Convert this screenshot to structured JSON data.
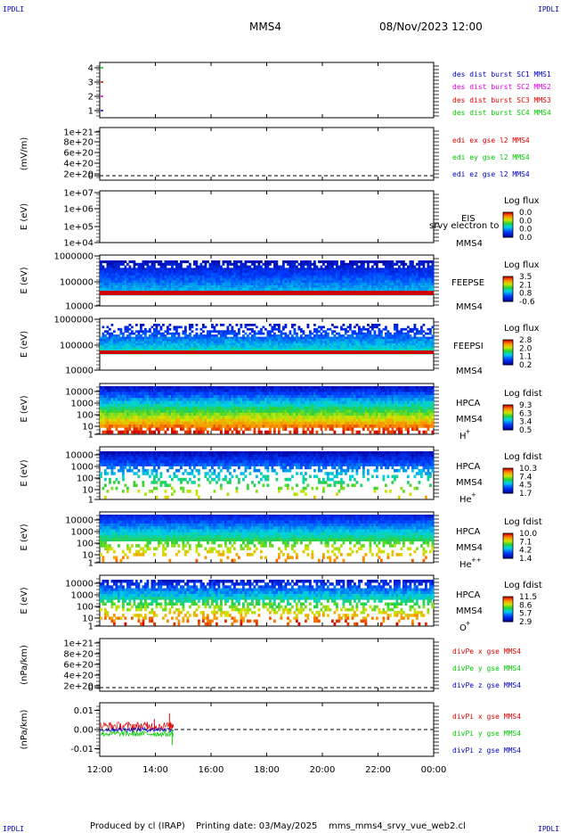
{
  "header": {
    "corner_tl": "IPDLI",
    "corner_tr": "IPDLI",
    "corner_bl": "IPDLI",
    "corner_br": "IPDLI",
    "spacecraft": "MMS4",
    "datetime": "08/Nov/2023 12:00"
  },
  "footer": {
    "produced": "Produced by cl (IRAP)",
    "printing": "Printing date: 03/May/2025",
    "script": "mms_mms4_srvy_vue_web2.cl"
  },
  "colors": {
    "red": "#e00000",
    "green": "#00c800",
    "blue": "#0000c8",
    "magenta": "#e000e0"
  },
  "chart_data": [
    {
      "type": "line",
      "id": "burst",
      "ylim": [
        0.5,
        4.5
      ],
      "ticks": [
        "1",
        "2",
        "3",
        "4"
      ],
      "legend": [
        {
          "name": "des dist burst SC1 MMS1",
          "color": "#0000c8"
        },
        {
          "name": "des dist burst SC2 MMS2",
          "color": "#e000e0"
        },
        {
          "name": "des dist burst SC3 MMS3",
          "color": "#e00000"
        },
        {
          "name": "des dist burst SC4 MMS4",
          "color": "#00c800"
        }
      ]
    },
    {
      "type": "line",
      "id": "edi",
      "ylabel": "(mV/m)",
      "ticks": [
        "1e+21",
        "8e+20",
        "6e+20",
        "4e+20",
        "2e+20",
        "0"
      ],
      "legend": [
        {
          "name": "edi ex gse l2 MMS4",
          "color": "#e00000"
        },
        {
          "name": "edi ey gse l2 MMS4",
          "color": "#00c800"
        },
        {
          "name": "edi ez gse l2 MMS4",
          "color": "#0000c8"
        }
      ]
    },
    {
      "type": "heatmap",
      "id": "eis",
      "ylabel": "E (eV)",
      "ticks": [
        "1e+07",
        "1e+06",
        "1e+05",
        "1e+04"
      ],
      "inst": "EIS",
      "inst_extra": "srvy electron to",
      "sc": "MMS4",
      "cbar_title": "Log flux",
      "cbar_values": [
        "0.0",
        "0.0",
        "0.0",
        "0.0"
      ]
    },
    {
      "type": "heatmap",
      "id": "feepse",
      "ylabel": "E (eV)",
      "ticks": [
        "1000000",
        "100000",
        "10000"
      ],
      "inst": "FEEPSE",
      "sc": "MMS4",
      "cbar_title": "Log flux",
      "cbar_values": [
        "3.5",
        "2.1",
        "0.8",
        "-0.6"
      ]
    },
    {
      "type": "heatmap",
      "id": "feepsi",
      "ylabel": "E (eV)",
      "ticks": [
        "1000000",
        "100000",
        "10000"
      ],
      "inst": "FEEPSI",
      "sc": "MMS4",
      "cbar_title": "Log flux",
      "cbar_values": [
        "2.8",
        "2.0",
        "1.1",
        "0.2"
      ]
    },
    {
      "type": "heatmap",
      "id": "hpca_h",
      "ylabel": "E (eV)",
      "ticks": [
        "10000",
        "1000",
        "100",
        "10",
        "1"
      ],
      "inst": "HPCA",
      "sc": "MMS4",
      "species": "H",
      "species_sup": "+",
      "cbar_title": "Log fdist",
      "cbar_values": [
        "9.3",
        "6.3",
        "3.4",
        "0.5"
      ]
    },
    {
      "type": "heatmap",
      "id": "hpca_he",
      "ylabel": "E (eV)",
      "ticks": [
        "10000",
        "1000",
        "100",
        "10",
        "1"
      ],
      "inst": "HPCA",
      "sc": "MMS4",
      "species": "He",
      "species_sup": "+",
      "cbar_title": "Log fdist",
      "cbar_values": [
        "10.3",
        "7.4",
        "4.5",
        "1.7"
      ]
    },
    {
      "type": "heatmap",
      "id": "hpca_hepp",
      "ylabel": "E (eV)",
      "ticks": [
        "10000",
        "1000",
        "100",
        "10",
        "1"
      ],
      "inst": "HPCA",
      "sc": "MMS4",
      "species": "He",
      "species_sup": "++",
      "cbar_title": "Log fdist",
      "cbar_values": [
        "10.0",
        "7.1",
        "4.2",
        "1.4"
      ]
    },
    {
      "type": "heatmap",
      "id": "hpca_o",
      "ylabel": "E (eV)",
      "ticks": [
        "10000",
        "1000",
        "100",
        "10",
        "1"
      ],
      "inst": "HPCA",
      "sc": "MMS4",
      "species": "O",
      "species_sup": "+",
      "cbar_title": "Log fdist",
      "cbar_values": [
        "11.5",
        "8.6",
        "5.7",
        "2.9"
      ]
    },
    {
      "type": "line",
      "id": "divpe",
      "ylabel": "(nPa/km)",
      "ticks": [
        "1e+21",
        "8e+20",
        "6e+20",
        "4e+20",
        "2e+20",
        "0"
      ],
      "legend": [
        {
          "name": "divPe x gse MMS4",
          "color": "#e00000"
        },
        {
          "name": "divPe y gse MMS4",
          "color": "#00c800"
        },
        {
          "name": "divPe z gse MMS4",
          "color": "#0000c8"
        }
      ]
    },
    {
      "type": "line",
      "id": "divpi",
      "ylabel": "(nPa/km)",
      "ylim": [
        -0.014,
        0.014
      ],
      "ticks": [
        "0.01",
        "0.00",
        "-0.01"
      ],
      "series_x_range": [
        "12:00",
        "14:40"
      ],
      "legend": [
        {
          "name": "divPi x gse MMS4",
          "color": "#e00000"
        },
        {
          "name": "divPi y gse MMS4",
          "color": "#00c800"
        },
        {
          "name": "divPi z gse MMS4",
          "color": "#0000c8"
        }
      ]
    }
  ],
  "xaxis": {
    "ticks": [
      "12:00",
      "14:00",
      "16:00",
      "18:00",
      "20:00",
      "22:00",
      "00:00"
    ]
  }
}
